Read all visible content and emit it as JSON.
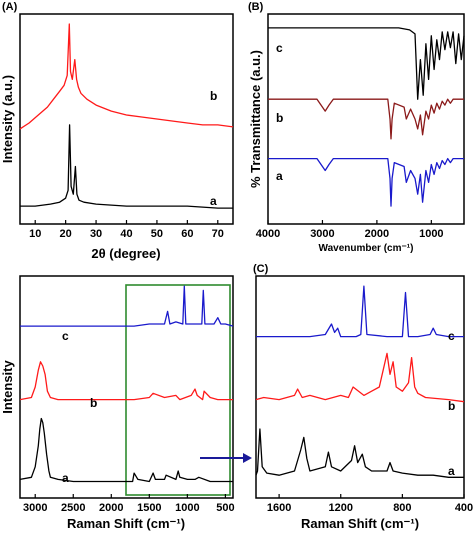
{
  "chart_data": [
    {
      "panel": "(A)",
      "type": "line",
      "xlabel": "2θ (degree)",
      "ylabel": "Intensity (a.u.)",
      "xlim": [
        5,
        75
      ],
      "xticks": [
        10,
        20,
        30,
        40,
        50,
        60,
        70
      ],
      "series": [
        {
          "name": "b",
          "color": "#ff1a1a",
          "x": [
            5,
            8,
            11,
            14,
            16,
            18,
            19.5,
            20.5,
            21.2,
            21.6,
            22.2,
            23,
            23.6,
            24.2,
            25,
            27,
            30,
            35,
            40,
            45,
            50,
            55,
            60,
            65,
            70,
            75
          ],
          "y": [
            0.45,
            0.48,
            0.52,
            0.56,
            0.6,
            0.64,
            0.67,
            0.72,
            0.98,
            0.74,
            0.7,
            0.8,
            0.7,
            0.66,
            0.63,
            0.6,
            0.57,
            0.54,
            0.52,
            0.51,
            0.5,
            0.49,
            0.48,
            0.47,
            0.47,
            0.46
          ]
        },
        {
          "name": "a",
          "color": "#000000",
          "x": [
            5,
            10,
            15,
            18,
            20,
            20.8,
            21.3,
            21.8,
            22.5,
            23.2,
            23.7,
            24.4,
            26,
            30,
            40,
            50,
            60,
            70,
            75
          ],
          "y": [
            0.06,
            0.06,
            0.07,
            0.08,
            0.1,
            0.14,
            0.47,
            0.16,
            0.12,
            0.26,
            0.12,
            0.09,
            0.08,
            0.07,
            0.06,
            0.06,
            0.06,
            0.05,
            0.05
          ]
        }
      ]
    },
    {
      "panel": "(B)",
      "type": "line",
      "xlabel": "Wavenumber (cm⁻¹)",
      "ylabel": "% Transmittance (a.u.)",
      "xlim": [
        4000,
        400
      ],
      "xticks": [
        4000,
        3000,
        2000,
        1000
      ],
      "series": [
        {
          "name": "c",
          "color": "#000000",
          "x": [
            4000,
            3000,
            2000,
            1600,
            1400,
            1300,
            1250,
            1200,
            1150,
            1100,
            1050,
            1000,
            950,
            900,
            850,
            800,
            750,
            700,
            650,
            600,
            550,
            500,
            450,
            400
          ],
          "y": [
            0.96,
            0.96,
            0.96,
            0.96,
            0.95,
            0.93,
            0.6,
            0.8,
            0.62,
            0.88,
            0.7,
            0.92,
            0.75,
            0.9,
            0.8,
            0.94,
            0.85,
            0.94,
            0.86,
            0.94,
            0.78,
            0.93,
            0.8,
            0.92
          ]
        },
        {
          "name": "b",
          "color": "#8b1a1a",
          "x": [
            4000,
            3100,
            2950,
            2880,
            2800,
            1800,
            1760,
            1740,
            1720,
            1680,
            1500,
            1460,
            1380,
            1300,
            1250,
            1200,
            1160,
            1100,
            1050,
            1000,
            950,
            900,
            850,
            800,
            750,
            700,
            650,
            600,
            500,
            400
          ],
          "y": [
            0.6,
            0.6,
            0.54,
            0.57,
            0.6,
            0.6,
            0.5,
            0.4,
            0.5,
            0.58,
            0.56,
            0.5,
            0.55,
            0.5,
            0.45,
            0.52,
            0.42,
            0.54,
            0.5,
            0.57,
            0.53,
            0.58,
            0.55,
            0.59,
            0.57,
            0.6,
            0.58,
            0.6,
            0.6,
            0.6
          ]
        },
        {
          "name": "a",
          "color": "#1a1acc",
          "x": [
            4000,
            3100,
            2950,
            2880,
            2800,
            1800,
            1760,
            1740,
            1720,
            1680,
            1500,
            1460,
            1380,
            1300,
            1250,
            1200,
            1160,
            1100,
            1050,
            1000,
            950,
            900,
            850,
            800,
            750,
            700,
            650,
            600,
            500,
            400
          ],
          "y": [
            0.3,
            0.3,
            0.24,
            0.27,
            0.3,
            0.3,
            0.2,
            0.06,
            0.2,
            0.28,
            0.26,
            0.18,
            0.24,
            0.2,
            0.12,
            0.22,
            0.08,
            0.24,
            0.18,
            0.27,
            0.22,
            0.28,
            0.25,
            0.29,
            0.27,
            0.3,
            0.28,
            0.3,
            0.3,
            0.3
          ]
        }
      ]
    },
    {
      "panel": "(C)",
      "type": "line",
      "xlabel": "Raman Shift (cm⁻¹)",
      "ylabel": "Intensity",
      "xlim": [
        3200,
        400
      ],
      "xticks": [
        3000,
        2500,
        2000,
        1500,
        1000,
        500
      ],
      "series": [
        {
          "name": "c",
          "color": "#1a1acc",
          "x": [
            3200,
            2900,
            2500,
            2000,
            1800,
            1700,
            1500,
            1300,
            1260,
            1230,
            1150,
            1060,
            1040,
            1020,
            900,
            810,
            790,
            770,
            650,
            600,
            560,
            500,
            400
          ],
          "y": [
            0.79,
            0.79,
            0.79,
            0.79,
            0.79,
            0.79,
            0.8,
            0.8,
            0.86,
            0.8,
            0.81,
            0.8,
            0.98,
            0.8,
            0.8,
            0.8,
            0.96,
            0.8,
            0.8,
            0.83,
            0.8,
            0.8,
            0.79
          ]
        },
        {
          "name": "b",
          "color": "#ff1a1a",
          "x": [
            3200,
            3050,
            3000,
            2960,
            2930,
            2900,
            2870,
            2840,
            2800,
            2700,
            2500,
            2000,
            1700,
            1500,
            1450,
            1300,
            1150,
            1100,
            950,
            900,
            870,
            800,
            780,
            700,
            600,
            400
          ],
          "y": [
            0.44,
            0.45,
            0.5,
            0.58,
            0.62,
            0.6,
            0.56,
            0.48,
            0.45,
            0.44,
            0.44,
            0.44,
            0.44,
            0.45,
            0.47,
            0.45,
            0.46,
            0.44,
            0.46,
            0.49,
            0.46,
            0.44,
            0.48,
            0.45,
            0.44,
            0.44
          ]
        },
        {
          "name": "a",
          "color": "#000000",
          "x": [
            3200,
            3050,
            3000,
            2960,
            2940,
            2920,
            2900,
            2880,
            2850,
            2820,
            2800,
            2700,
            2500,
            2000,
            1720,
            1700,
            1650,
            1500,
            1450,
            1420,
            1300,
            1280,
            1150,
            1120,
            1100,
            1000,
            900,
            850,
            700,
            600,
            400
          ],
          "y": [
            0.06,
            0.07,
            0.12,
            0.22,
            0.3,
            0.35,
            0.33,
            0.28,
            0.18,
            0.1,
            0.07,
            0.06,
            0.05,
            0.05,
            0.05,
            0.09,
            0.06,
            0.05,
            0.09,
            0.06,
            0.06,
            0.08,
            0.06,
            0.1,
            0.07,
            0.06,
            0.06,
            0.07,
            0.05,
            0.05,
            0.05
          ]
        }
      ]
    },
    {
      "panel": "(C) inset",
      "type": "line",
      "xlabel": "Raman Shift (cm⁻¹)",
      "xlim": [
        1750,
        400
      ],
      "xticks": [
        1600,
        1200,
        800,
        400
      ],
      "series": [
        {
          "name": "c",
          "color": "#1a1acc",
          "x": [
            1750,
            1600,
            1400,
            1300,
            1260,
            1240,
            1220,
            1200,
            1100,
            1070,
            1050,
            1030,
            900,
            800,
            780,
            760,
            700,
            620,
            600,
            580,
            500,
            400
          ],
          "y": [
            0.74,
            0.74,
            0.74,
            0.75,
            0.8,
            0.76,
            0.78,
            0.74,
            0.74,
            0.75,
            0.98,
            0.75,
            0.74,
            0.74,
            0.95,
            0.74,
            0.74,
            0.75,
            0.78,
            0.75,
            0.74,
            0.74
          ]
        },
        {
          "name": "b",
          "color": "#ff1a1a",
          "x": [
            1750,
            1700,
            1600,
            1500,
            1480,
            1450,
            1400,
            1300,
            1200,
            1150,
            1120,
            1050,
            1000,
            950,
            900,
            880,
            860,
            840,
            800,
            760,
            740,
            720,
            700,
            650,
            500,
            400
          ],
          "y": [
            0.44,
            0.45,
            0.44,
            0.46,
            0.49,
            0.45,
            0.46,
            0.44,
            0.46,
            0.45,
            0.5,
            0.46,
            0.48,
            0.5,
            0.66,
            0.56,
            0.62,
            0.5,
            0.48,
            0.52,
            0.64,
            0.5,
            0.47,
            0.45,
            0.44,
            0.43
          ]
        },
        {
          "name": "a",
          "color": "#000000",
          "x": [
            1750,
            1740,
            1725,
            1710,
            1680,
            1600,
            1500,
            1460,
            1440,
            1420,
            1400,
            1300,
            1280,
            1260,
            1200,
            1130,
            1110,
            1090,
            1060,
            1040,
            1000,
            900,
            880,
            860,
            800,
            700,
            600,
            500,
            400
          ],
          "y": [
            0.08,
            0.1,
            0.3,
            0.12,
            0.09,
            0.08,
            0.1,
            0.2,
            0.26,
            0.16,
            0.1,
            0.12,
            0.19,
            0.12,
            0.1,
            0.15,
            0.22,
            0.14,
            0.18,
            0.12,
            0.1,
            0.1,
            0.14,
            0.1,
            0.09,
            0.08,
            0.08,
            0.07,
            0.07
          ]
        }
      ]
    }
  ]
}
